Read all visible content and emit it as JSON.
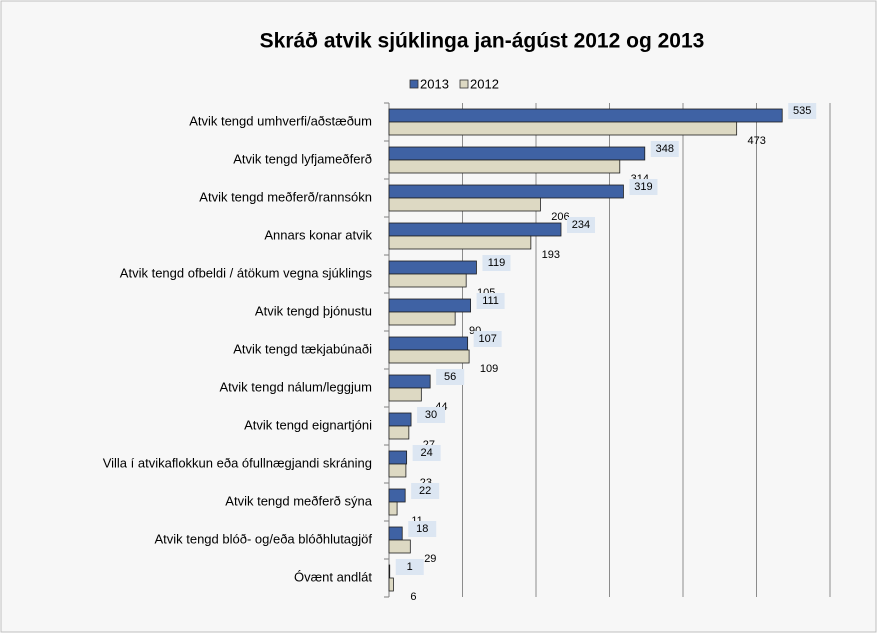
{
  "chart_data": {
    "type": "hbar",
    "title": "Skráð atvik sjúklinga  jan-ágúst  2012 og 2013",
    "categories": [
      "Atvik tengd umhverfi/aðstæðum",
      "Atvik tengd lyfjameðferð",
      "Atvik tengd meðferð/rannsókn",
      "Annars konar atvik",
      "Atvik tengd ofbeldi / átökum vegna sjúklings",
      "Atvik tengd þjónustu",
      "Atvik tengd tækjabúnaði",
      "Atvik tengd nálum/leggjum",
      "Atvik tengd eignartjóni",
      "Villa í atvikaflokkun eða ófullnægjandi skráning",
      "Atvik tengd meðferð sýna",
      "Atvik tengd blóð- og/eða blóðhlutagjöf",
      "Óvænt andlát"
    ],
    "series": [
      {
        "name": "2013",
        "color": "#3f62a4",
        "values": [
          535,
          348,
          319,
          234,
          119,
          111,
          107,
          56,
          30,
          24,
          22,
          18,
          1
        ]
      },
      {
        "name": "2012",
        "color": "#ddd9c3",
        "values": [
          473,
          314,
          206,
          193,
          105,
          90,
          109,
          44,
          27,
          23,
          11,
          29,
          6
        ]
      }
    ],
    "xlim": [
      0,
      600
    ],
    "xticks": [
      0,
      100,
      200,
      300,
      400,
      500,
      600
    ],
    "grid": true,
    "legend": "top"
  }
}
